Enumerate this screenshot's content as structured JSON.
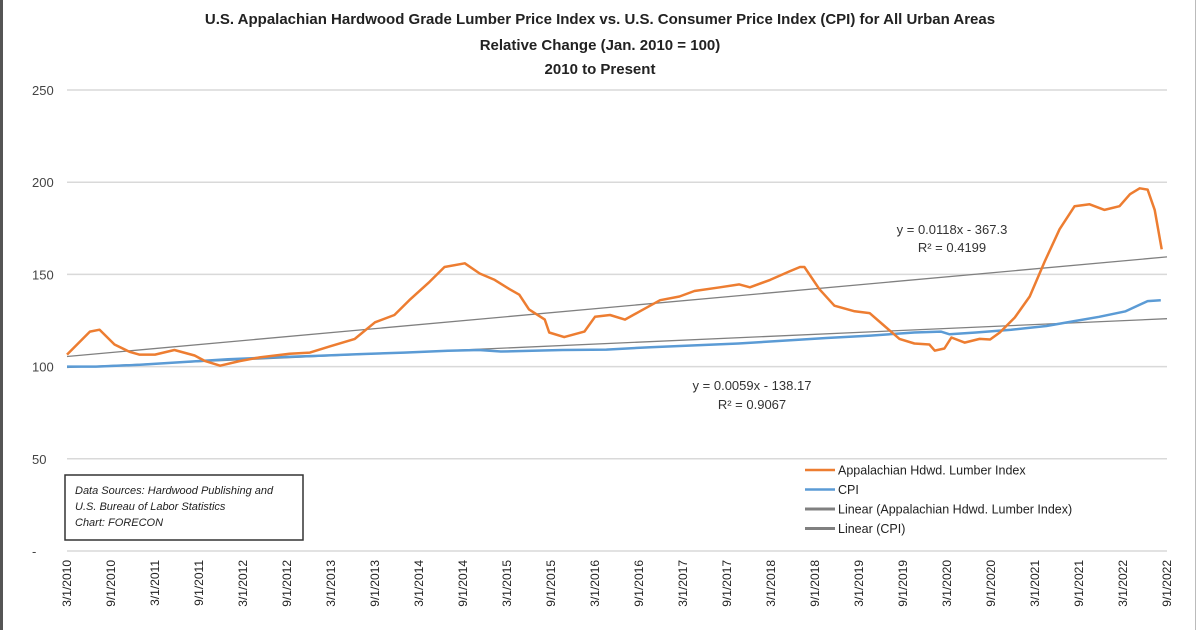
{
  "chart_data": {
    "type": "line",
    "title": [
      "U.S. Appalachian  Hardwood Grade Lumber Price Index vs. U.S. Consumer Price Index (CPI) for All Urban Areas",
      "Relative Change (Jan. 2010 = 100)",
      "2010 to Present"
    ],
    "xlabel": "",
    "ylabel": "",
    "ylim": [
      0,
      250
    ],
    "xlim": [
      2010.17,
      2022.67
    ],
    "x_unit": "decimal year",
    "grid": true,
    "y_ticks": [
      0,
      50,
      100,
      150,
      200,
      250
    ],
    "y_tick_labels": [
      "-",
      "50",
      "100",
      "150",
      "200",
      "250"
    ],
    "x_tick_labels": [
      "3/1/2010",
      "9/1/2010",
      "3/1/2011",
      "9/1/2011",
      "3/1/2012",
      "9/1/2012",
      "3/1/2013",
      "9/1/2013",
      "3/1/2014",
      "9/1/2014",
      "3/1/2015",
      "9/1/2015",
      "3/1/2016",
      "9/1/2016",
      "3/1/2017",
      "9/1/2017",
      "3/1/2018",
      "9/1/2018",
      "3/1/2019",
      "9/1/2019",
      "3/1/2020",
      "9/1/2020",
      "3/1/2021",
      "9/1/2021",
      "3/1/2022",
      "9/1/2022"
    ],
    "legend_position": "bottom-right",
    "series": [
      {
        "name": "Appalachian Hdwd. Lumber Index",
        "color": "#ED7D31",
        "x": [
          2010.17,
          2010.43,
          2010.54,
          2010.71,
          2010.88,
          2010.99,
          2011.17,
          2011.39,
          2011.62,
          2011.74,
          2011.91,
          2012.13,
          2012.36,
          2012.7,
          2012.93,
          2013.16,
          2013.44,
          2013.67,
          2013.89,
          2014.06,
          2014.29,
          2014.46,
          2014.69,
          2014.86,
          2015.03,
          2015.2,
          2015.31,
          2015.42,
          2015.6,
          2015.65,
          2015.82,
          2016.05,
          2016.17,
          2016.34,
          2016.51,
          2016.68,
          2016.91,
          2017.13,
          2017.3,
          2017.59,
          2017.81,
          2017.93,
          2018.16,
          2018.38,
          2018.5,
          2018.55,
          2018.72,
          2018.89,
          2019.12,
          2019.29,
          2019.46,
          2019.63,
          2019.8,
          2019.97,
          2020.03,
          2020.14,
          2020.22,
          2020.37,
          2020.54,
          2020.66,
          2020.77,
          2020.94,
          2021.11,
          2021.28,
          2021.45,
          2021.62,
          2021.79,
          2021.96,
          2022.13,
          2022.25,
          2022.36,
          2022.45,
          2022.53,
          2022.61
        ],
        "values": [
          106.5,
          119,
          120,
          112,
          108,
          106.5,
          106.5,
          109,
          106,
          103,
          100.5,
          103,
          105,
          107,
          107.6,
          111,
          115,
          124,
          128,
          136,
          146,
          154,
          156,
          150.5,
          147,
          142,
          139,
          131,
          125.5,
          118.5,
          116,
          119,
          127,
          128,
          125.5,
          130,
          136,
          138,
          141,
          143,
          144.6,
          143,
          147,
          151.6,
          154,
          154,
          142,
          133,
          130,
          129,
          122,
          115,
          112.5,
          112,
          108.7,
          109.8,
          115.8,
          113,
          115,
          114.7,
          118.5,
          126.6,
          138,
          157,
          174.5,
          187,
          188,
          185,
          187,
          193.5,
          196.7,
          196,
          185,
          163.6
        ]
      },
      {
        "name": "CPI",
        "color": "#5B9BD5",
        "x": [
          2010.17,
          2010.5,
          2011.0,
          2011.5,
          2012.0,
          2012.5,
          2013.0,
          2013.5,
          2014.0,
          2014.5,
          2014.85,
          2015.1,
          2015.4,
          2015.8,
          2016.3,
          2016.8,
          2017.3,
          2017.8,
          2018.3,
          2018.8,
          2019.3,
          2019.8,
          2020.1,
          2020.2,
          2020.5,
          2020.9,
          2021.3,
          2021.6,
          2021.9,
          2022.2,
          2022.45,
          2022.6
        ],
        "values": [
          100,
          100,
          101,
          102.5,
          104,
          105,
          105.8,
          106.8,
          107.6,
          108.6,
          109,
          108.2,
          108.5,
          109,
          109.2,
          110.5,
          111.5,
          112.5,
          114,
          115.5,
          116.8,
          118.5,
          119,
          117.5,
          118.5,
          120,
          122,
          124.5,
          127,
          130,
          135.5,
          136
        ]
      },
      {
        "name": "Linear (Appalachian Hdwd. Lumber Index)",
        "color": "#808080",
        "x": [
          2010.17,
          2022.67
        ],
        "values": [
          105.5,
          159.5
        ]
      },
      {
        "name": "Linear (CPI)",
        "color": "#808080",
        "x": [
          2010.17,
          2022.67
        ],
        "values": [
          99.5,
          126
        ]
      }
    ],
    "annotations": {
      "lumber_trend_eq": "y = 0.0118x - 367.3",
      "lumber_trend_r2": "R² = 0.4199",
      "cpi_trend_eq": "y = 0.0059x - 138.17",
      "cpi_trend_r2": "R² = 0.9067"
    },
    "source_note": [
      "Data Sources: Hardwood Publishing and",
      "U.S. Bureau of Labor Statistics",
      "Chart: FORECON"
    ]
  }
}
